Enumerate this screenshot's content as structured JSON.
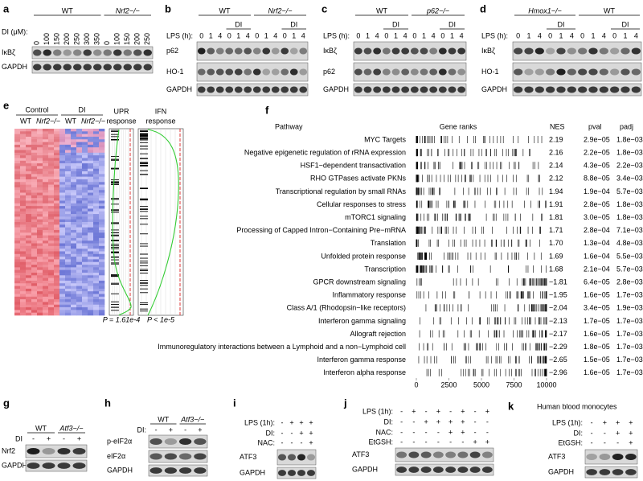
{
  "blot_panels": {
    "a": {
      "letter": "a",
      "groups": [
        "WT",
        "Nrf2−/−"
      ],
      "rows": [
        {
          "label": "DI (μM):",
          "lanes": [
            "0",
            "100",
            "150",
            "200",
            "250",
            "300",
            "350",
            "0",
            "100",
            "150",
            "200",
            "250"
          ]
        }
      ],
      "blots": [
        "IκBζ",
        "GAPDH"
      ]
    },
    "b": {
      "letter": "b",
      "groups": [
        "WT",
        "Nrf2−/−"
      ],
      "subgroups": [
        "DI",
        "DI"
      ],
      "rows": [
        {
          "label": "LPS (h):",
          "lanes": [
            "0",
            "1",
            "4",
            "0",
            "1",
            "4",
            "0",
            "1",
            "4",
            "0",
            "1",
            "4"
          ]
        }
      ],
      "blots": [
        "p62",
        "HO-1",
        "GAPDH"
      ]
    },
    "c": {
      "letter": "c",
      "groups": [
        "WT",
        "p62−/−"
      ],
      "subgroups": [
        "DI",
        "DI"
      ],
      "rows": [
        {
          "label": "LPS (h):",
          "lanes": [
            "0",
            "1",
            "4",
            "0",
            "1",
            "4",
            "0",
            "1",
            "4",
            "0",
            "1",
            "4"
          ]
        }
      ],
      "blots": [
        "IκBζ",
        "p62",
        "GAPDH"
      ]
    },
    "d": {
      "letter": "d",
      "groups": [
        "Hmox1−/−",
        "WT"
      ],
      "subgroups": [
        "DI",
        "DI"
      ],
      "rows": [
        {
          "label": "LPS (h):",
          "lanes": [
            "0",
            "1",
            "4",
            "0",
            "1",
            "4",
            "0",
            "1",
            "4",
            "0",
            "1",
            "4"
          ]
        }
      ],
      "blots": [
        "IκBζ",
        "HO-1",
        "GAPDH"
      ]
    },
    "g": {
      "letter": "g",
      "groups": [
        "WT",
        "Atf3−/−"
      ],
      "rows": [
        {
          "label": "DI",
          "lanes": [
            "-",
            "+",
            "-",
            "+"
          ]
        }
      ],
      "blots": [
        "Nrf2",
        "GAPDH"
      ]
    },
    "h": {
      "letter": "h",
      "groups": [
        "WT",
        "Atf3−/−"
      ],
      "rows": [
        {
          "label": "DI:",
          "lanes": [
            "-",
            "+",
            "-",
            "+"
          ]
        }
      ],
      "blots": [
        "p-eIF2α",
        "eIF2α",
        "GAPDH"
      ]
    },
    "i": {
      "letter": "i",
      "rows": [
        {
          "label": "LPS (1h):",
          "lanes": [
            "-",
            "+",
            "+",
            "+"
          ]
        },
        {
          "label": "DI:",
          "lanes": [
            "-",
            "-",
            "+",
            "+"
          ]
        },
        {
          "label": "NAC:",
          "lanes": [
            "-",
            "-",
            "-",
            "+"
          ]
        }
      ],
      "blots": [
        "ATF3",
        "GAPDH"
      ]
    },
    "j": {
      "letter": "j",
      "rows": [
        {
          "label": "LPS (1h):",
          "lanes": [
            "-",
            "+",
            "-",
            "+",
            "-",
            "+",
            "-",
            "+"
          ]
        },
        {
          "label": "DI:",
          "lanes": [
            "-",
            "-",
            "+",
            "+",
            "+",
            "+",
            "-",
            "-"
          ]
        },
        {
          "label": "NAC:",
          "lanes": [
            "-",
            "-",
            "-",
            "-",
            "+",
            "+",
            "-",
            "-"
          ]
        },
        {
          "label": "EtGSH:",
          "lanes": [
            "-",
            "-",
            "-",
            "-",
            "-",
            "-",
            "+",
            "+"
          ]
        }
      ],
      "blots": [
        "ATF3",
        "GAPDH"
      ]
    },
    "k": {
      "letter": "k",
      "title": "Human blood monocytes",
      "rows": [
        {
          "label": "LPS (1h):",
          "lanes": [
            "-",
            "+",
            "+",
            "+"
          ]
        },
        {
          "label": "DI:",
          "lanes": [
            "-",
            "-",
            "+",
            "+"
          ]
        },
        {
          "label": "EtGSH:",
          "lanes": [
            "-",
            "-",
            "-",
            "+"
          ]
        }
      ],
      "blots": [
        "ATF3",
        "GAPDH"
      ]
    }
  },
  "heatmap_panel": {
    "letter": "e",
    "column_groups": [
      "Control",
      "DI"
    ],
    "columns": [
      "WT",
      "Nrf2−/−",
      "WT",
      "Nrf2−/−"
    ],
    "gsea": [
      {
        "lines": [
          "UPR",
          "response"
        ],
        "p_label": "P = 1.61e-4"
      },
      {
        "lines": [
          "IFN",
          "response"
        ],
        "p_label": "P < 1e-5"
      }
    ]
  },
  "pathway_panel": {
    "letter": "f",
    "headers": {
      "pathway": "Pathway",
      "ranks": "Gene ranks",
      "nes": "NES",
      "pval": "pval",
      "padj": "padj"
    },
    "rank_lim": [
      0,
      10000
    ],
    "rank_ticks": [
      0,
      2500,
      5000,
      7500,
      10000
    ],
    "rows": [
      {
        "pathway": "MYC Targets",
        "nes": "2.19",
        "pval": "2.9e−05",
        "padj": "1.8e−03"
      },
      {
        "pathway": "Negative epigenetic regulation of rRNA expression",
        "nes": "2.16",
        "pval": "2.2e−05",
        "padj": "1.8e−03"
      },
      {
        "pathway": "HSF1−dependent transactivation",
        "nes": "2.14",
        "pval": "4.3e−05",
        "padj": "2.2e−03"
      },
      {
        "pathway": "RHO GTPases activate PKNs",
        "nes": "2.12",
        "pval": "8.8e−05",
        "padj": "3.4e−03"
      },
      {
        "pathway": "Transcriptional regulation by small RNAs",
        "nes": "1.94",
        "pval": "1.9e−04",
        "padj": "5.7e−03"
      },
      {
        "pathway": "Cellular responses to stress",
        "nes": "1.91",
        "pval": "2.8e−05",
        "padj": "1.8e−03"
      },
      {
        "pathway": "mTORC1 signaling",
        "nes": "1.81",
        "pval": "3.0e−05",
        "padj": "1.8e−03"
      },
      {
        "pathway": "Processing of Capped Intron−Containing Pre−mRNA",
        "nes": "1.71",
        "pval": "2.8e−04",
        "padj": "7.1e−03"
      },
      {
        "pathway": "Translation",
        "nes": "1.70",
        "pval": "1.3e−04",
        "padj": "4.8e−03"
      },
      {
        "pathway": "Unfolded protein response",
        "nes": "1.69",
        "pval": "1.6e−04",
        "padj": "5.5e−03"
      },
      {
        "pathway": "Transcription",
        "nes": "1.68",
        "pval": "2.1e−04",
        "padj": "5.7e−03"
      },
      {
        "pathway": "GPCR downstream signaling",
        "nes": "−1.81",
        "pval": "6.4e−05",
        "padj": "2.8e−03"
      },
      {
        "pathway": "Inflammatory response",
        "nes": "−1.95",
        "pval": "1.6e−05",
        "padj": "1.7e−03"
      },
      {
        "pathway": "Class A/1 (Rhodopsin−like receptors)",
        "nes": "−2.04",
        "pval": "3.4e−05",
        "padj": "1.9e−03"
      },
      {
        "pathway": "Interferon gamma signaling",
        "nes": "−2.13",
        "pval": "1.7e−05",
        "padj": "1.7e−03"
      },
      {
        "pathway": "Allograft rejection",
        "nes": "−2.17",
        "pval": "1.6e−05",
        "padj": "1.7e−03"
      },
      {
        "pathway": "Immunoregulatory interactions between a Lymphoid and a non−Lymphoid cell",
        "nes": "−2.29",
        "pval": "1.8e−05",
        "padj": "1.7e−03"
      },
      {
        "pathway": "Interferon gamma response",
        "nes": "−2.65",
        "pval": "1.5e−05",
        "padj": "1.7e−03"
      },
      {
        "pathway": "Interferon alpha response",
        "nes": "−2.96",
        "pval": "1.6e−05",
        "padj": "1.7e−03"
      }
    ]
  }
}
